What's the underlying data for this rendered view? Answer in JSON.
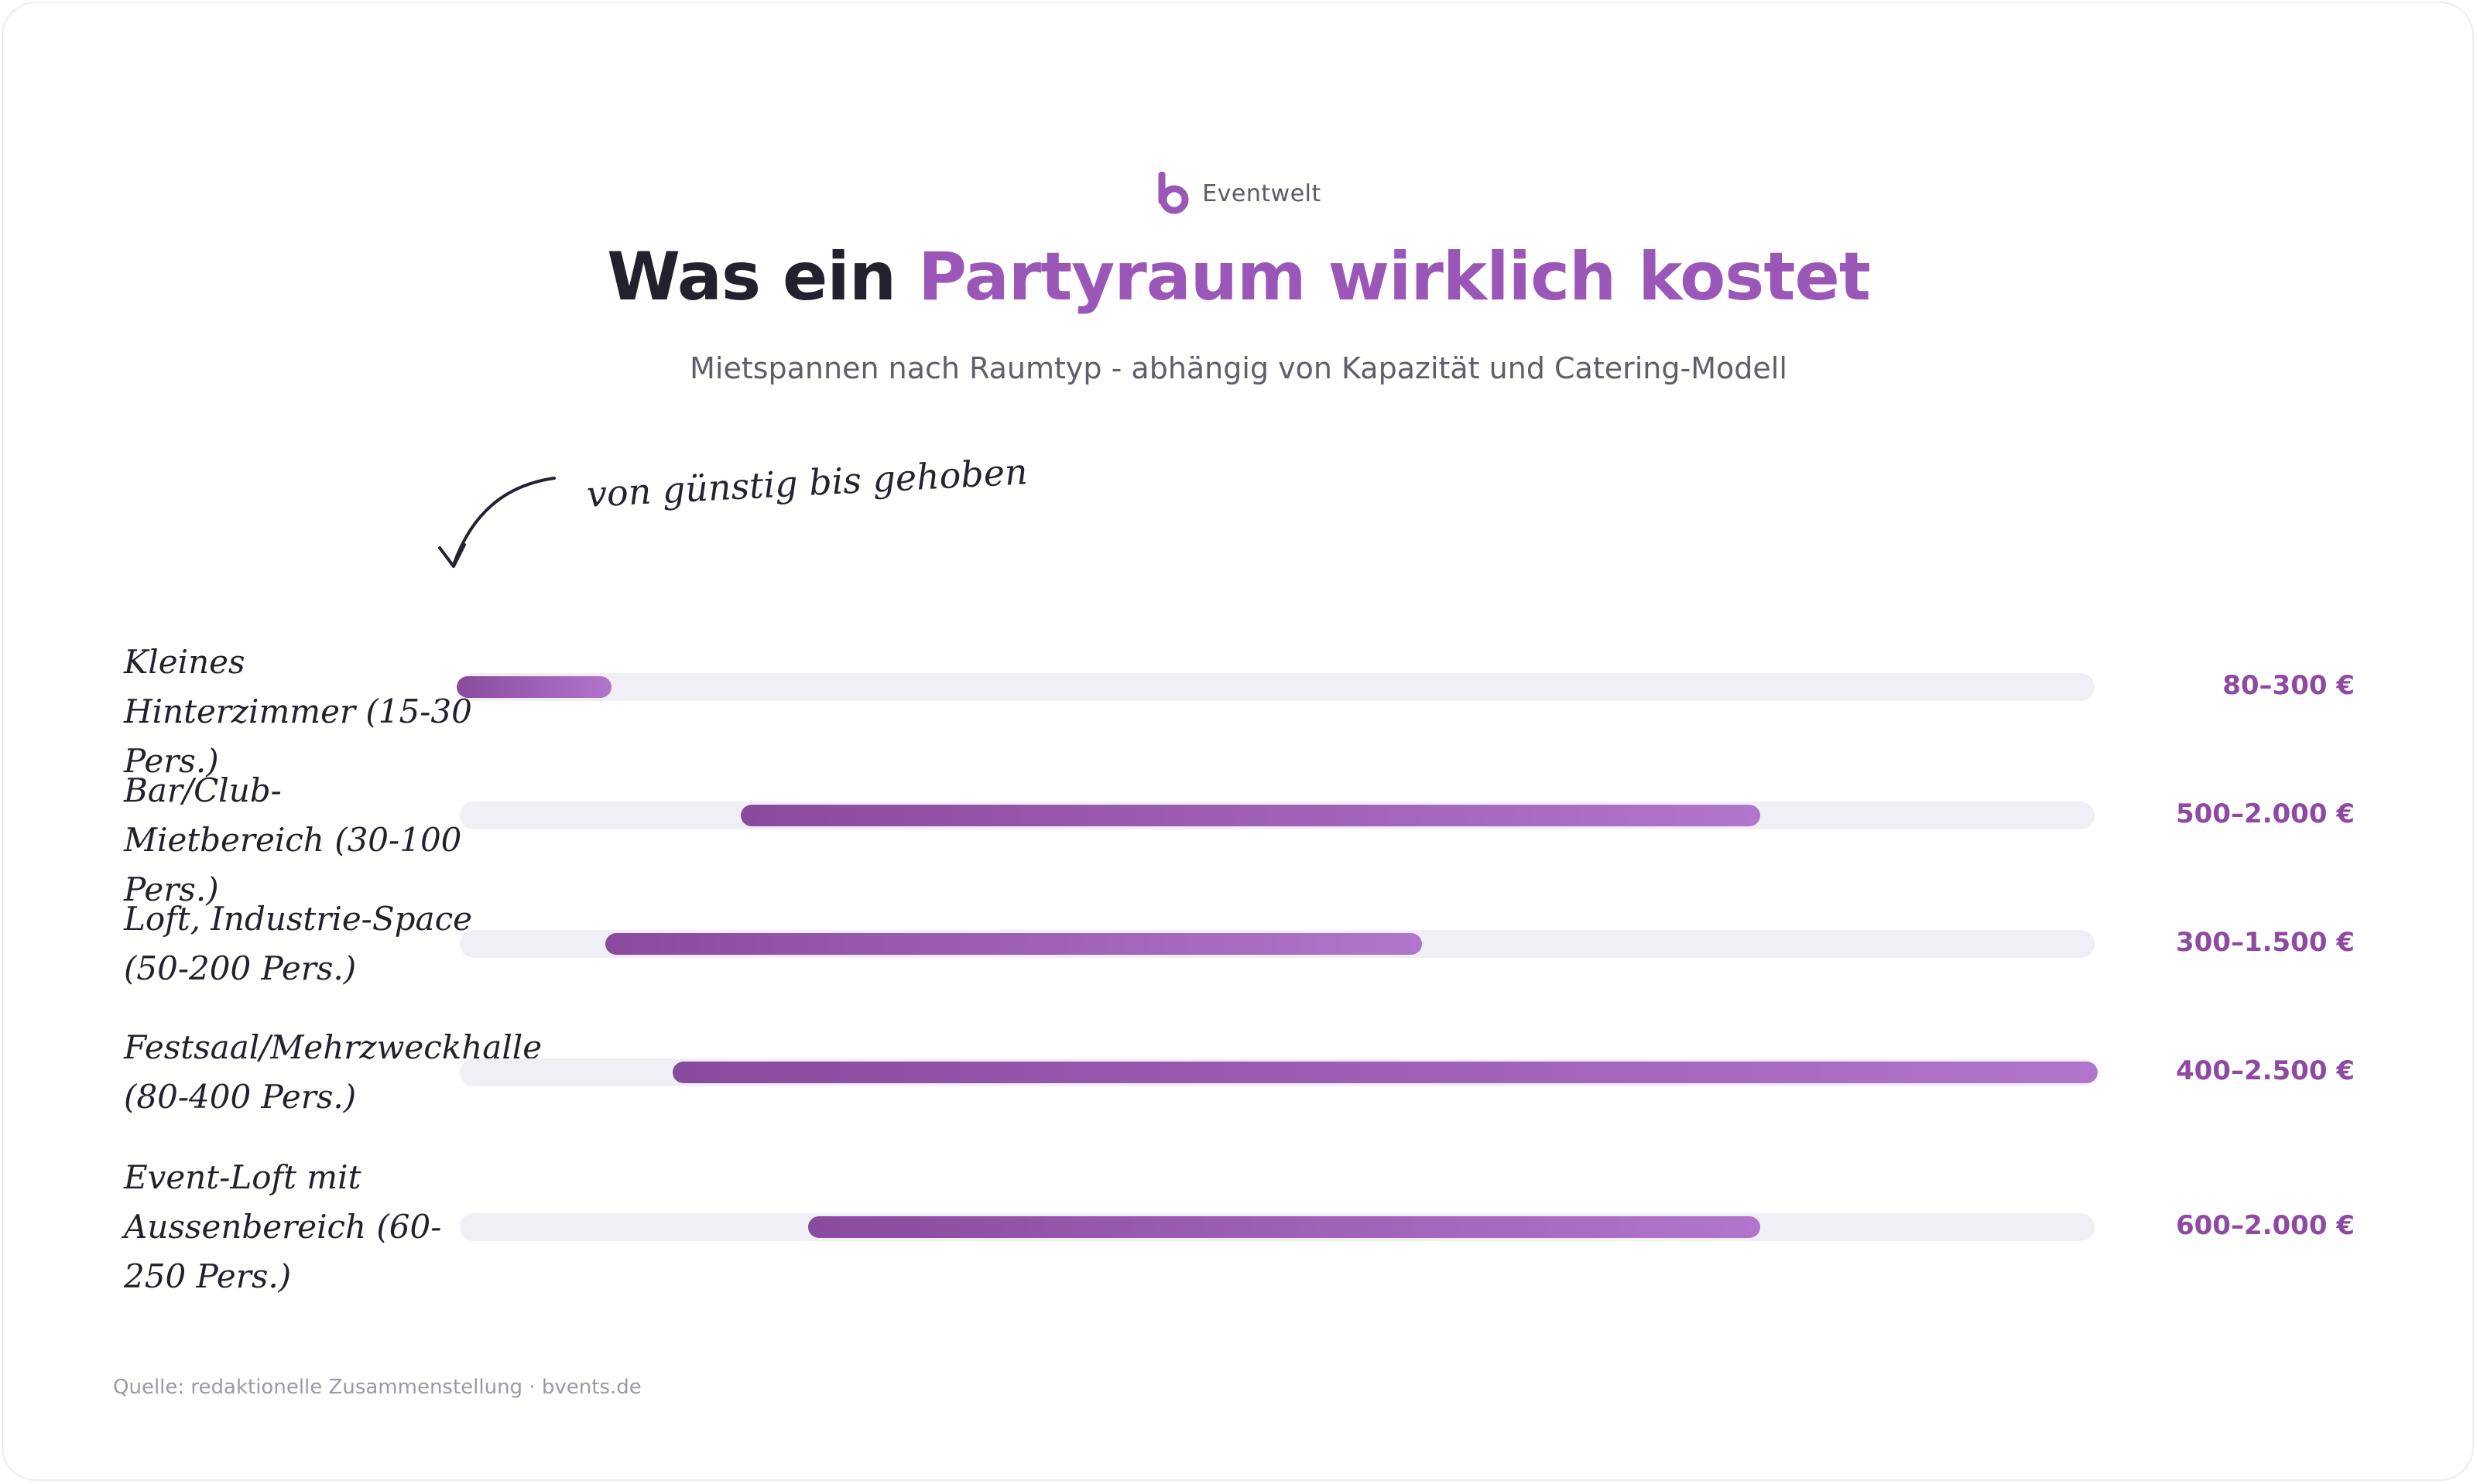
{
  "brand": {
    "name": "Eventwelt",
    "icon": "b-logo-icon",
    "color": "#9b57b8"
  },
  "header": {
    "title_part1": "Was ein ",
    "title_part2": "Partyraum wirklich kostet",
    "subtitle": "Mietspannen nach Raumtyp - abhängig von Kapazität und Catering-Modell"
  },
  "annotation": {
    "text": "von günstig bis gehoben",
    "icon": "curved-arrow-icon"
  },
  "source": "Quelle: redaktionelle Zusammenstellung · bvents.de",
  "colors": {
    "bar_start": "#8a4a9e",
    "bar_end": "#b275cc",
    "track": "#f1eff6",
    "accent": "#9b57b8",
    "value_text": "#8e4aa3"
  },
  "chart_data": {
    "type": "bar",
    "orientation": "horizontal-range",
    "unit": "€",
    "xlim": [
      80,
      2500
    ],
    "grid": false,
    "categories": [
      "Kleines Hinterzimmer (15-30 Pers.)",
      "Bar/Club-Mietbereich (30-100 Pers.)",
      "Loft, Industrie-Space (50-200 Pers.)",
      "Festsaal/Mehrzweckhalle (80-400 Pers.)",
      "Event-Loft mit Aussenbereich (60-250 Pers.)"
    ],
    "ranges": [
      {
        "min": 80,
        "max": 300
      },
      {
        "min": 500,
        "max": 2000
      },
      {
        "min": 300,
        "max": 1500
      },
      {
        "min": 400,
        "max": 2500
      },
      {
        "min": 600,
        "max": 2000
      }
    ],
    "value_labels": [
      "80–300 €",
      "500–2.000 €",
      "300–1.500 €",
      "400–2.500 €",
      "600–2.000 €"
    ]
  }
}
